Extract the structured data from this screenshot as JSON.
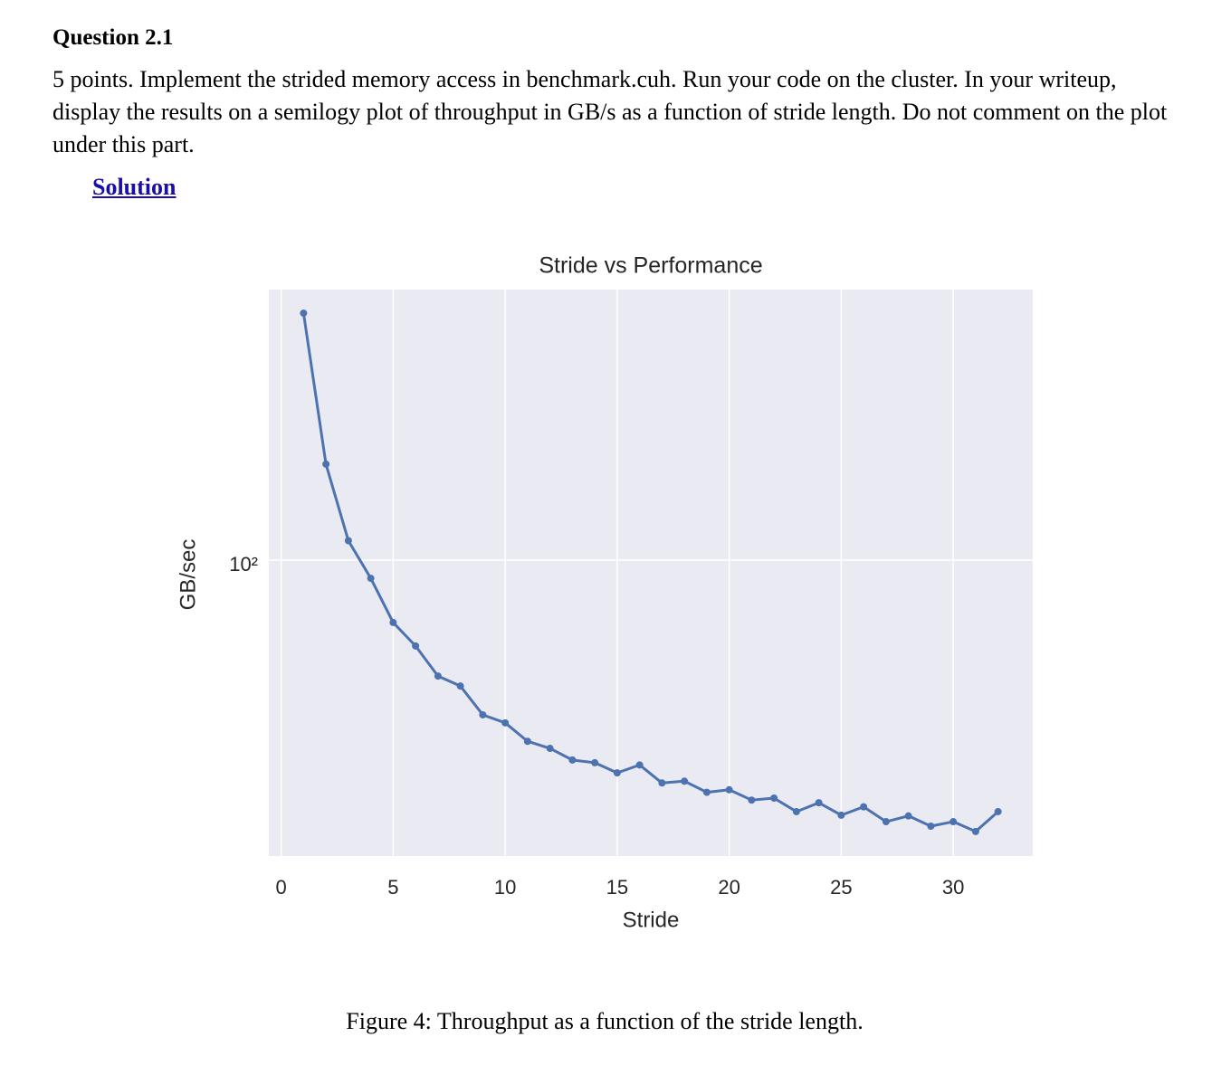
{
  "heading": "Question 2.1",
  "paragraph": "5 points. Implement the strided memory access in benchmark.cuh. Run your code on the cluster. In your writeup, display the results on a semilogy plot of throughput in GB/s as a function of stride length. Do not comment on the plot under this part.",
  "link": "Solution",
  "chart_data": {
    "type": "line",
    "title": "Stride vs Performance",
    "x_label": "Stride",
    "y_label": "GB/sec",
    "x": [
      1,
      2,
      3,
      4,
      5,
      6,
      7,
      8,
      9,
      10,
      11,
      12,
      13,
      14,
      15,
      16,
      17,
      18,
      19,
      20,
      21,
      22,
      23,
      24,
      25,
      26,
      27,
      28,
      29,
      30,
      31,
      32
    ],
    "series": [
      {
        "name": "throughput",
        "color": "#4c72b0",
        "values": [
          335,
          160,
          110,
          91.5,
          73.7,
          65.7,
          56.7,
          54.0,
          46.9,
          45.1,
          41.2,
          39.8,
          37.6,
          37.1,
          35.3,
          36.7,
          33.6,
          33.9,
          32.1,
          32.5,
          30.9,
          31.2,
          29.2,
          30.5,
          28.7,
          29.9,
          27.8,
          28.6,
          27.2,
          27.8,
          26.5,
          29.2
        ]
      }
    ],
    "xlim": [
      -0.55,
      33.55
    ],
    "xticks": [
      0,
      5,
      10,
      15,
      20,
      25,
      30
    ],
    "ylim": [
      23.5,
      376
    ],
    "yticks": [
      {
        "value": 100,
        "label": "10²"
      }
    ],
    "yscale": "log",
    "grid": true,
    "background": "#eaeaf2"
  },
  "caption": "Figure 4: Throughput as a function of the stride length."
}
